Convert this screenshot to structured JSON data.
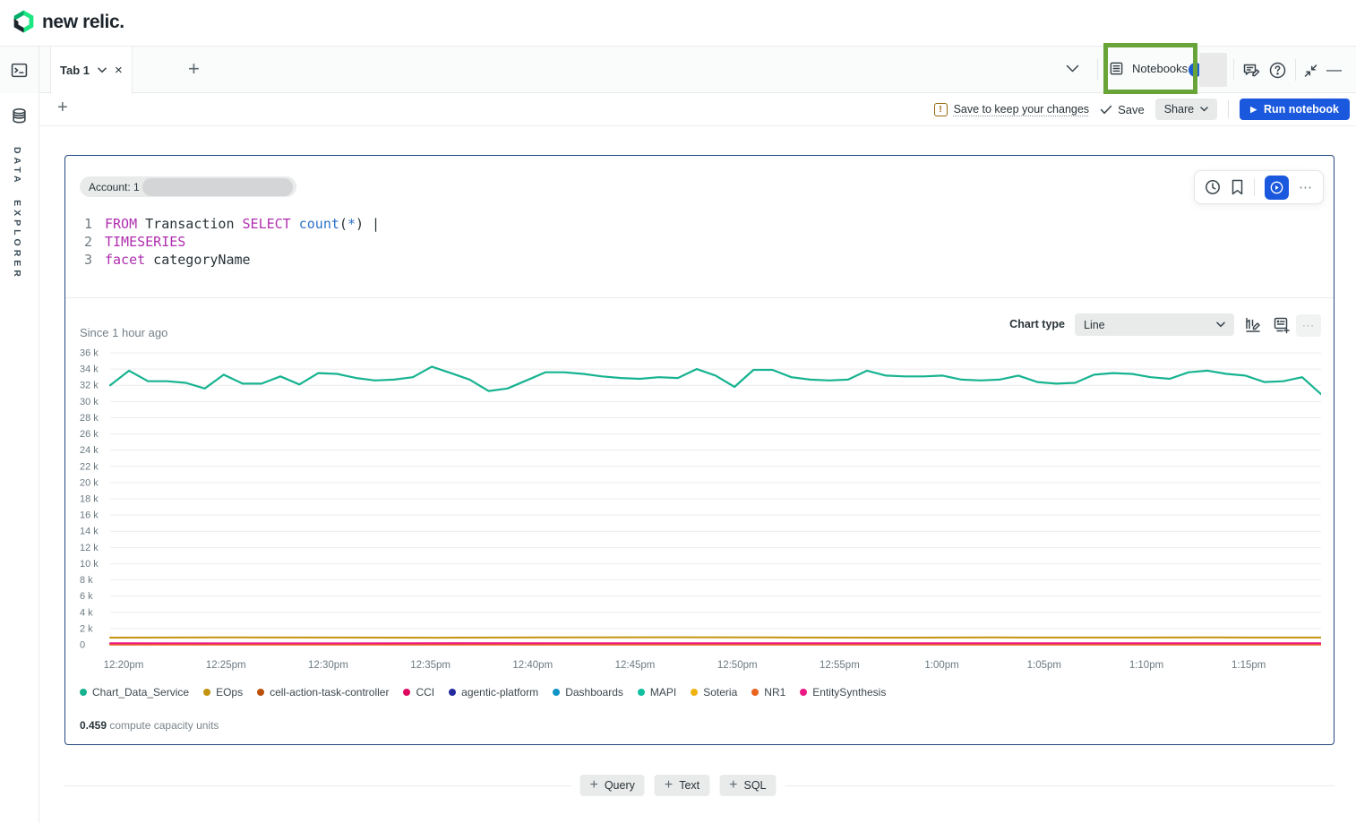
{
  "brand": "new relic.",
  "icons": {
    "plus": "+",
    "close": "×",
    "ellipsis": "⋯",
    "minimize": "—",
    "help": "?",
    "warning": "!",
    "run_play": "▶"
  },
  "sidebar": {
    "label": "DATA EXPLORER"
  },
  "tabs": {
    "tab1": "Tab 1"
  },
  "top_right": {
    "notebooks": "Notebooks"
  },
  "notebook_toolbar": {
    "warning": "Save to keep your changes",
    "save": "Save",
    "share": "Share",
    "run": "Run notebook"
  },
  "cell": {
    "account": "Account: 1",
    "query": [
      {
        "num": "1",
        "tokens": [
          [
            "FROM",
            "kw"
          ],
          [
            " Transaction ",
            "pl"
          ],
          [
            "SELECT",
            "kw"
          ],
          [
            " ",
            "pl"
          ],
          [
            "count",
            "fn"
          ],
          [
            "(",
            "pl"
          ],
          [
            "*",
            "fn"
          ],
          [
            ")",
            "pl"
          ],
          [
            " ",
            "pl"
          ],
          [
            "|",
            "cur"
          ]
        ]
      },
      {
        "num": "2",
        "tokens": [
          [
            "TIMESERIES",
            "kw"
          ]
        ]
      },
      {
        "num": "3",
        "tokens": [
          [
            "facet",
            "kw"
          ],
          [
            " categoryName",
            "pl"
          ]
        ]
      }
    ],
    "chart_header": {
      "since": "Since 1 hour ago",
      "chart_type_label": "Chart type",
      "chart_type_value": "Line"
    },
    "footnote": {
      "value": "0.459",
      "label": " compute capacity units"
    }
  },
  "footer": {
    "query": "Query",
    "text": "Text",
    "sql": "SQL"
  },
  "chart_data": {
    "type": "line",
    "title": "Since 1 hour ago",
    "ylim": [
      0,
      36000
    ],
    "grid": true,
    "legend_position": "bottom",
    "y_ticks": [
      "36 k",
      "34 k",
      "32 k",
      "30 k",
      "28 k",
      "26 k",
      "24 k",
      "22 k",
      "20 k",
      "18 k",
      "16 k",
      "14 k",
      "12 k",
      "10 k",
      "8 k",
      "6 k",
      "4 k",
      "2 k",
      "0"
    ],
    "x_ticks": [
      "12:20pm",
      "12:25pm",
      "12:30pm",
      "12:35pm",
      "12:40pm",
      "12:45pm",
      "12:50pm",
      "12:55pm",
      "1:00pm",
      "1:05pm",
      "1:10pm",
      "1:15pm"
    ],
    "series": [
      {
        "name": "Chart_Data_Service",
        "color": "#17b390",
        "width": 2.2,
        "values": [
          32000,
          33800,
          32500,
          32500,
          32300,
          31600,
          33300,
          32200,
          32200,
          33100,
          32100,
          33500,
          33400,
          32900,
          32600,
          32700,
          33000,
          34300,
          33500,
          32700,
          31300,
          31600,
          32600,
          33600,
          33600,
          33400,
          33100,
          32900,
          32800,
          33000,
          32900,
          34000,
          33200,
          31800,
          33900,
          33900,
          33000,
          32700,
          32600,
          32700,
          33800,
          33200,
          33100,
          33100,
          33200,
          32700,
          32600,
          32700,
          33200,
          32400,
          32200,
          32300,
          33300,
          33500,
          33400,
          33000,
          32800,
          33600,
          33800,
          33400,
          33200,
          32400,
          32500,
          33000,
          30900
        ]
      },
      {
        "name": "EOps",
        "color": "#c2940f",
        "width": 2,
        "values": [
          880,
          900,
          890,
          870,
          900,
          930,
          900,
          880,
          910,
          890,
          900,
          890
        ]
      },
      {
        "name": "cell-action-task-controller",
        "color": "#b9510c",
        "width": 2,
        "values": [
          130,
          125,
          135,
          128,
          130,
          126,
          132,
          128
        ]
      },
      {
        "name": "CCI",
        "color": "#df0a60",
        "width": 2,
        "values": [
          170,
          165,
          172,
          168,
          170,
          166,
          171,
          168
        ]
      },
      {
        "name": "agentic-platform",
        "color": "#222a9e",
        "width": 2,
        "values": [
          70,
          72,
          68,
          71,
          69,
          70,
          72,
          70
        ]
      },
      {
        "name": "Dashboards",
        "color": "#0e94c6",
        "width": 2,
        "values": [
          95,
          92,
          96,
          94,
          93,
          95,
          94,
          93
        ]
      },
      {
        "name": "MAPI",
        "color": "#0fbfa0",
        "width": 2,
        "values": [
          60,
          62,
          59,
          61,
          60,
          62,
          60,
          61
        ]
      },
      {
        "name": "Soteria",
        "color": "#efb310",
        "width": 2,
        "values": [
          45,
          46,
          44,
          45,
          46,
          45,
          44,
          45
        ]
      },
      {
        "name": "NR1",
        "color": "#ea6420",
        "width": 2,
        "values": [
          35,
          36,
          34,
          35,
          36,
          35,
          34,
          35
        ]
      },
      {
        "name": "EntitySynthesis",
        "color": "#ec1884",
        "width": 2,
        "values": [
          185,
          182,
          186,
          184,
          183,
          185,
          184,
          183
        ]
      }
    ]
  }
}
